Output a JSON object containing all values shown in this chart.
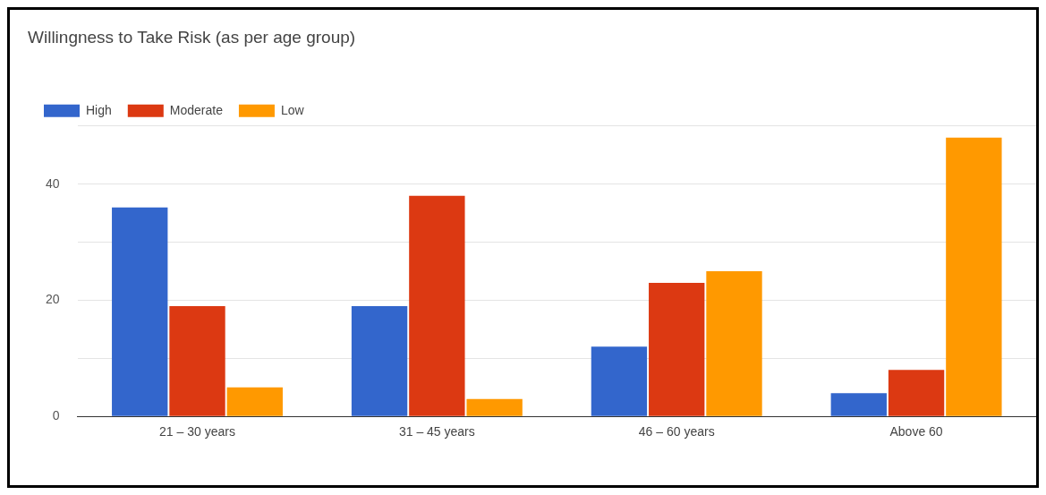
{
  "chart_data": {
    "type": "bar",
    "title": "Willingness to Take Risk (as per age group)",
    "categories": [
      "21 – 30 years",
      "31 – 45 years",
      "46 – 60 years",
      "Above 60"
    ],
    "series": [
      {
        "name": "High",
        "color": "#3366cc",
        "values": [
          36,
          19,
          12,
          4
        ]
      },
      {
        "name": "Moderate",
        "color": "#dc3912",
        "values": [
          19,
          38,
          23,
          8
        ]
      },
      {
        "name": "Low",
        "color": "#ff9900",
        "values": [
          5,
          3,
          25,
          48
        ]
      }
    ],
    "ylim": [
      0,
      50
    ],
    "yticks": [
      0,
      {
        "value": 10,
        "label": null
      },
      20,
      {
        "value": 30,
        "label": null
      },
      40,
      {
        "value": 50,
        "label": null
      }
    ],
    "grid": "y",
    "legend": "top left"
  }
}
